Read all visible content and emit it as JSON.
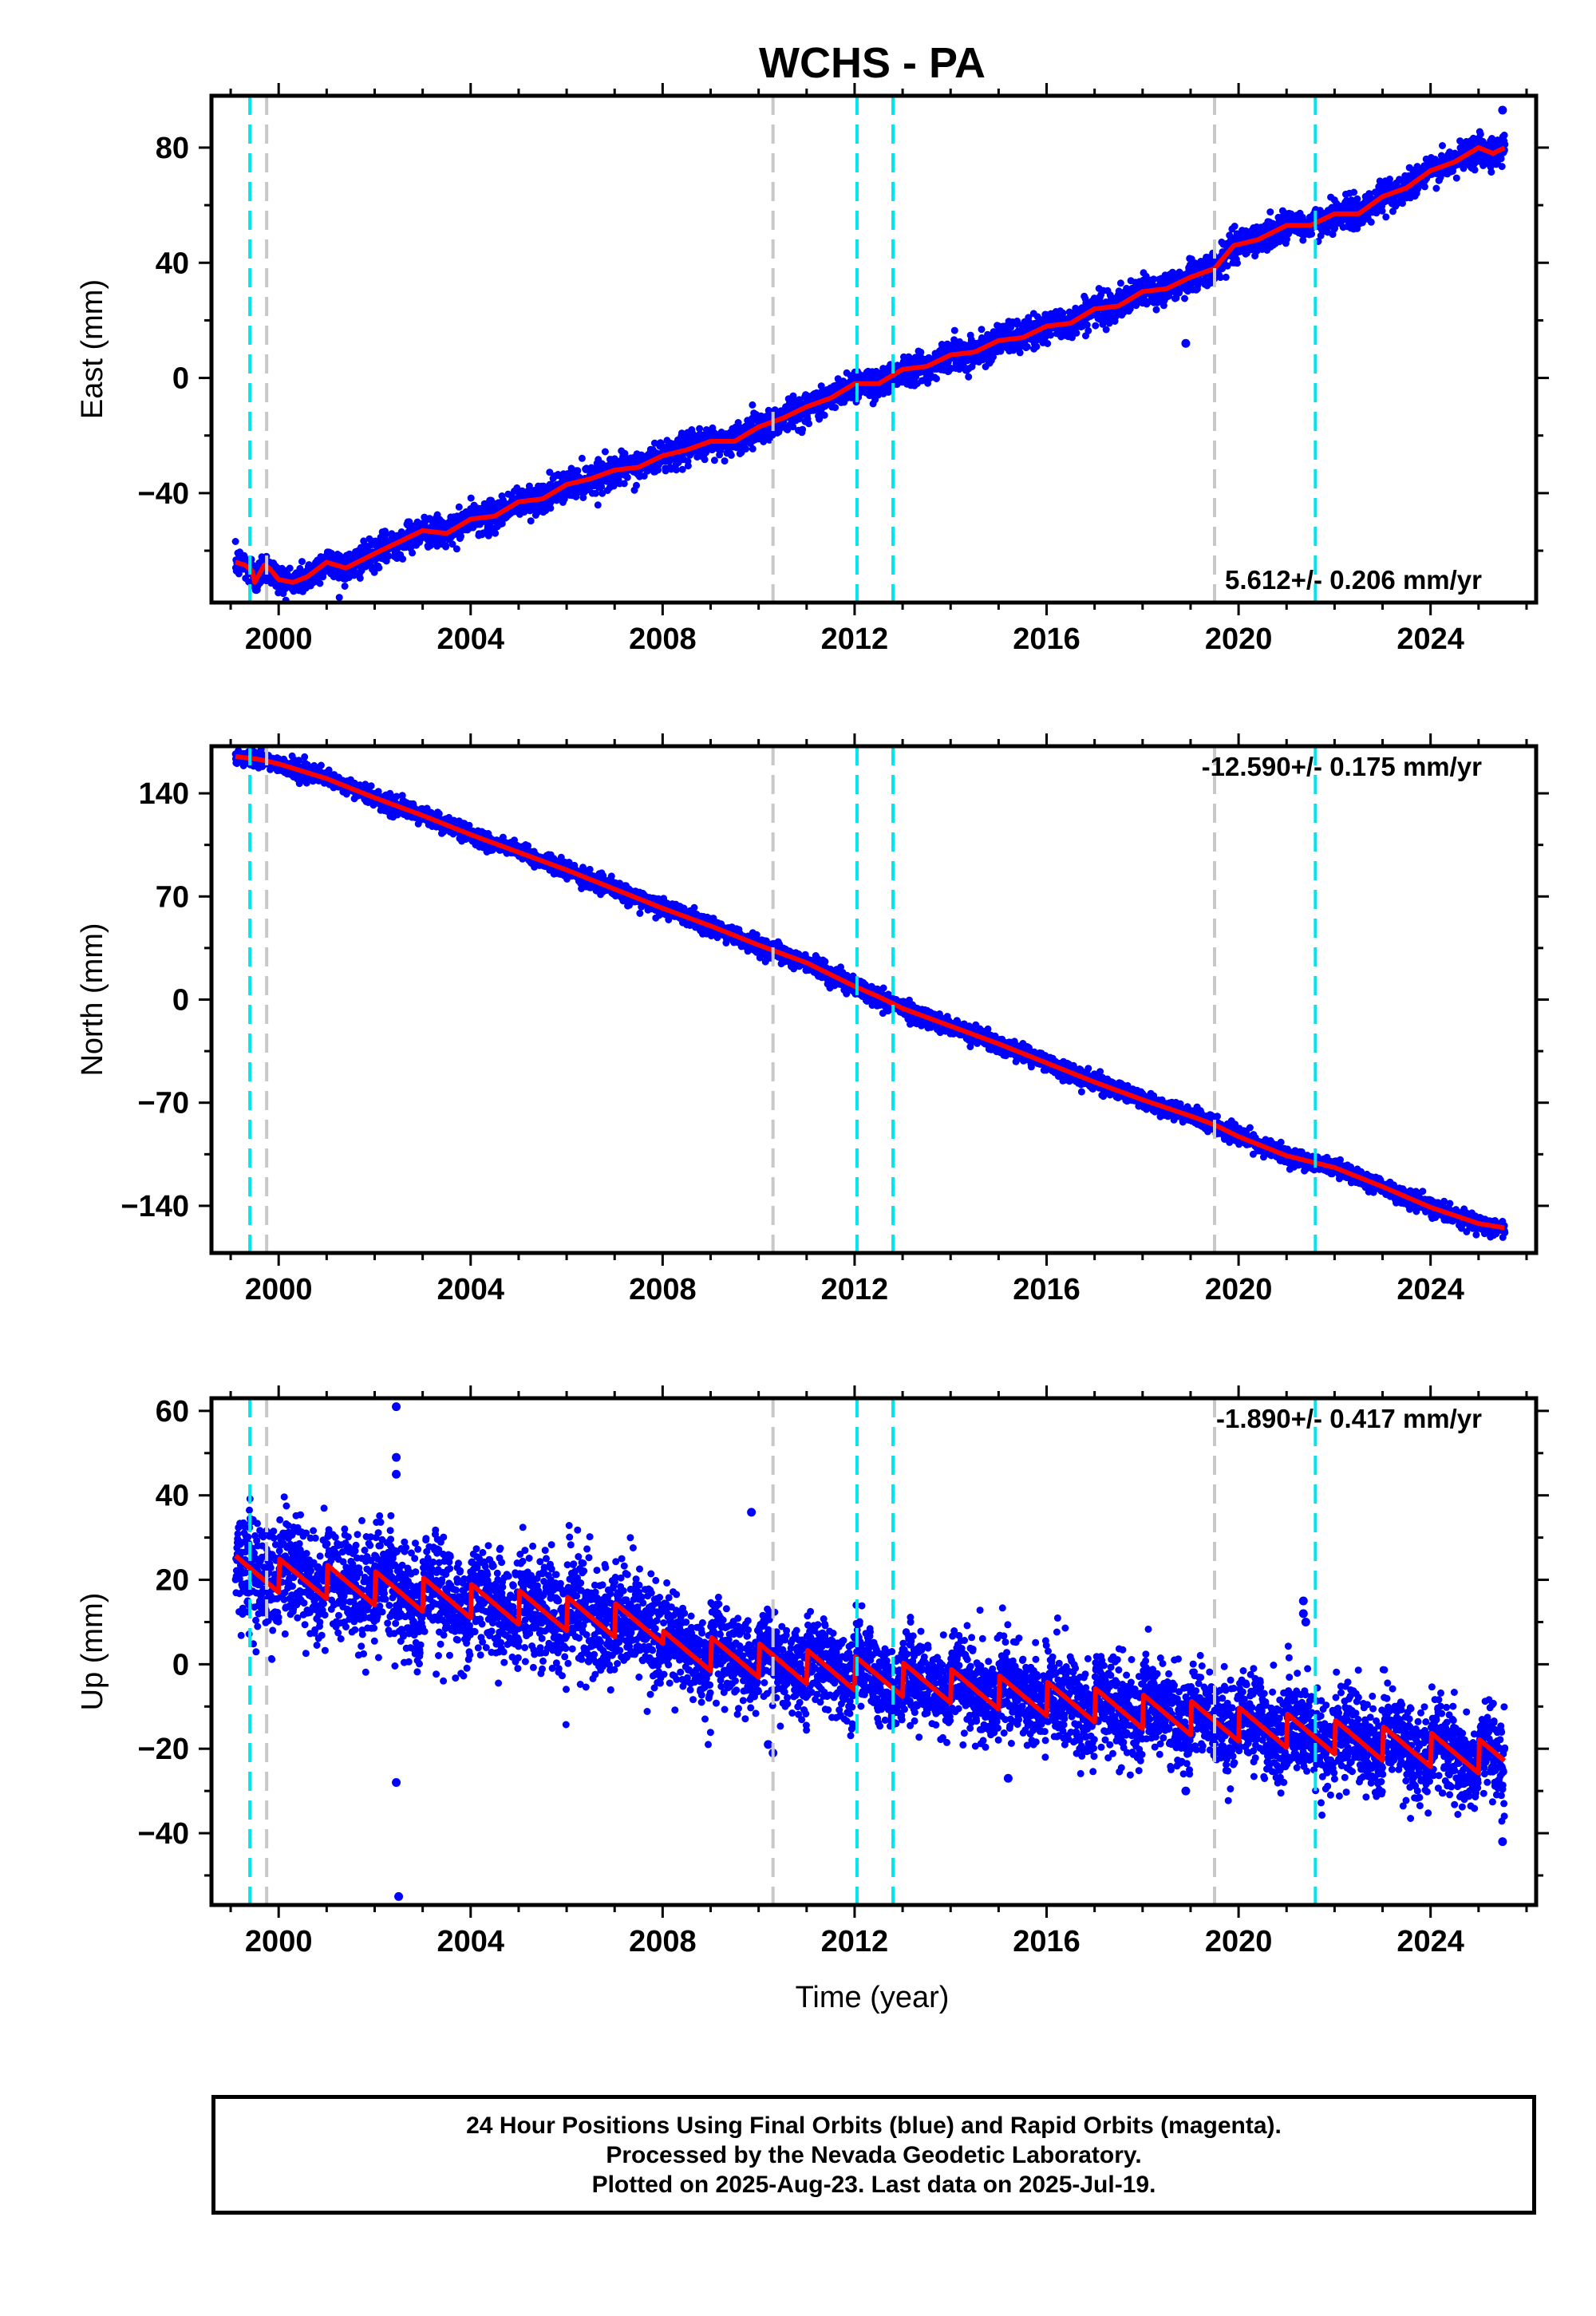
{
  "title": "WCHS - PA",
  "xlabel": "Time (year)",
  "x_ticks": [
    2000,
    2004,
    2008,
    2012,
    2016,
    2020,
    2024
  ],
  "footer": {
    "line1": "24 Hour Positions Using Final Orbits (blue) and Rapid Orbits (magenta).",
    "line2": "Processed by the Nevada Geodetic Laboratory.",
    "line3": "Plotted on 2025-Aug-23. Last data on 2025-Jul-19."
  },
  "colors": {
    "data": "#0000ff",
    "model": "#ff0000",
    "event_cyan": "#00e5ee",
    "event_gray": "#c8c8c8"
  },
  "chart_data": [
    {
      "type": "scatter",
      "ylabel": "East (mm)",
      "xlim": [
        1998.6,
        2026.2
      ],
      "ylim": [
        -78,
        98
      ],
      "y_ticks": [
        -40,
        0,
        40,
        80
      ],
      "y_tick_labels": [
        "−40",
        "0",
        "40",
        "80"
      ],
      "rate_label": "5.612+/- 0.206 mm/yr",
      "rate_position": "bottom-right",
      "trend": {
        "start_year": 1999.1,
        "start_value": -66,
        "end_year": 2025.55,
        "end_value": 82
      },
      "model_points": [
        [
          1999.1,
          -64
        ],
        [
          1999.3,
          -65
        ],
        [
          1999.45,
          -67
        ],
        [
          1999.5,
          -71
        ],
        [
          1999.6,
          -68
        ],
        [
          1999.7,
          -65
        ],
        [
          1999.8,
          -66
        ],
        [
          2000.0,
          -70
        ],
        [
          2000.3,
          -71
        ],
        [
          2000.6,
          -69
        ],
        [
          2001.0,
          -64
        ],
        [
          2001.4,
          -66
        ],
        [
          2002.0,
          -61
        ],
        [
          2002.5,
          -57
        ],
        [
          2003.0,
          -53
        ],
        [
          2003.5,
          -54
        ],
        [
          2004.0,
          -49
        ],
        [
          2004.5,
          -48
        ],
        [
          2005.0,
          -43
        ],
        [
          2005.5,
          -42
        ],
        [
          2006.0,
          -37
        ],
        [
          2006.5,
          -35
        ],
        [
          2007.0,
          -32
        ],
        [
          2007.5,
          -31
        ],
        [
          2008.0,
          -27
        ],
        [
          2008.5,
          -25
        ],
        [
          2009.0,
          -22
        ],
        [
          2009.5,
          -22
        ],
        [
          2010.0,
          -17
        ],
        [
          2010.5,
          -14
        ],
        [
          2011.0,
          -10
        ],
        [
          2011.5,
          -7
        ],
        [
          2012.0,
          -2
        ],
        [
          2012.5,
          -2
        ],
        [
          2013.0,
          3
        ],
        [
          2013.5,
          4
        ],
        [
          2014.0,
          8
        ],
        [
          2014.5,
          9
        ],
        [
          2015.0,
          13
        ],
        [
          2015.5,
          14
        ],
        [
          2016.0,
          18
        ],
        [
          2016.5,
          19
        ],
        [
          2017.0,
          24
        ],
        [
          2017.5,
          25
        ],
        [
          2018.0,
          30
        ],
        [
          2018.5,
          31
        ],
        [
          2019.0,
          35
        ],
        [
          2019.5,
          38
        ],
        [
          2019.9,
          46
        ],
        [
          2020.4,
          48
        ],
        [
          2021.0,
          53
        ],
        [
          2021.5,
          53
        ],
        [
          2022.0,
          57
        ],
        [
          2022.5,
          57
        ],
        [
          2023.0,
          63
        ],
        [
          2023.5,
          66
        ],
        [
          2024.0,
          72
        ],
        [
          2024.5,
          75
        ],
        [
          2025.0,
          80
        ],
        [
          2025.3,
          78
        ],
        [
          2025.55,
          80
        ]
      ],
      "scatter_noise": 2.6,
      "outliers": [
        [
          2018.9,
          12
        ],
        [
          2025.5,
          93
        ]
      ],
      "events_cyan": [
        1999.4,
        2012.05,
        2012.8,
        2021.6
      ],
      "events_gray": [
        1999.75,
        2010.3,
        2019.5
      ]
    },
    {
      "type": "scatter",
      "ylabel": "North (mm)",
      "xlim": [
        1998.6,
        2026.2
      ],
      "ylim": [
        -172,
        172
      ],
      "y_ticks": [
        -140,
        -70,
        0,
        70,
        140
      ],
      "y_tick_labels": [
        "−140",
        "−70",
        "0",
        "70",
        "140"
      ],
      "rate_label": "-12.590+/- 0.175 mm/yr",
      "rate_position": "top-right",
      "model_points": [
        [
          1999.1,
          165
        ],
        [
          1999.6,
          163
        ],
        [
          2000.0,
          160
        ],
        [
          2001.0,
          150
        ],
        [
          2002.0,
          137
        ],
        [
          2003.0,
          125
        ],
        [
          2004.0,
          112
        ],
        [
          2005.0,
          100
        ],
        [
          2006.0,
          88
        ],
        [
          2007.0,
          75
        ],
        [
          2008.0,
          62
        ],
        [
          2009.0,
          50
        ],
        [
          2010.0,
          37
        ],
        [
          2011.0,
          25
        ],
        [
          2012.0,
          9
        ],
        [
          2012.5,
          2
        ],
        [
          2013.0,
          -6
        ],
        [
          2014.0,
          -18
        ],
        [
          2015.0,
          -30
        ],
        [
          2016.0,
          -43
        ],
        [
          2017.0,
          -56
        ],
        [
          2018.0,
          -68
        ],
        [
          2019.0,
          -79
        ],
        [
          2019.5,
          -85
        ],
        [
          2020.0,
          -93
        ],
        [
          2021.0,
          -106
        ],
        [
          2022.0,
          -114
        ],
        [
          2023.0,
          -127
        ],
        [
          2024.0,
          -141
        ],
        [
          2025.0,
          -152
        ],
        [
          2025.55,
          -155
        ]
      ],
      "scatter_noise": 2.8,
      "outliers": [],
      "events_cyan": [
        1999.4,
        2012.05,
        2012.8,
        2021.6
      ],
      "events_gray": [
        1999.75,
        2010.3,
        2019.5
      ]
    },
    {
      "type": "scatter",
      "ylabel": "Up (mm)",
      "xlim": [
        1998.6,
        2026.2
      ],
      "ylim": [
        -57,
        63
      ],
      "y_ticks": [
        -40,
        -20,
        0,
        20,
        40,
        60
      ],
      "y_tick_labels": [
        "−40",
        "−20",
        "0",
        "20",
        "40",
        "60"
      ],
      "rate_label": "-1.890+/- 0.417 mm/yr",
      "rate_position": "top-right",
      "trend": {
        "start_year": 1999.1,
        "start_value": 22,
        "end_year": 2025.55,
        "end_value": -18
      },
      "seasonal_amplitude": 4.5,
      "steps": [
        [
          2008.0,
          -5
        ]
      ],
      "scatter_noise": 5.5,
      "outliers": [
        [
          2002.45,
          61
        ],
        [
          2002.45,
          49
        ],
        [
          2002.45,
          45
        ],
        [
          2002.45,
          -28
        ],
        [
          2002.5,
          -55
        ],
        [
          2009.85,
          36
        ],
        [
          2010.2,
          -19
        ],
        [
          2010.3,
          -21
        ],
        [
          2015.2,
          -27
        ],
        [
          2018.9,
          -30
        ],
        [
          2021.35,
          15
        ],
        [
          2021.35,
          12
        ],
        [
          2021.4,
          10
        ],
        [
          2024.6,
          -28
        ],
        [
          2025.5,
          -42
        ]
      ],
      "events_cyan": [
        1999.4,
        2012.05,
        2012.8,
        2021.6
      ],
      "events_gray": [
        1999.75,
        2010.3,
        2019.5
      ]
    }
  ]
}
